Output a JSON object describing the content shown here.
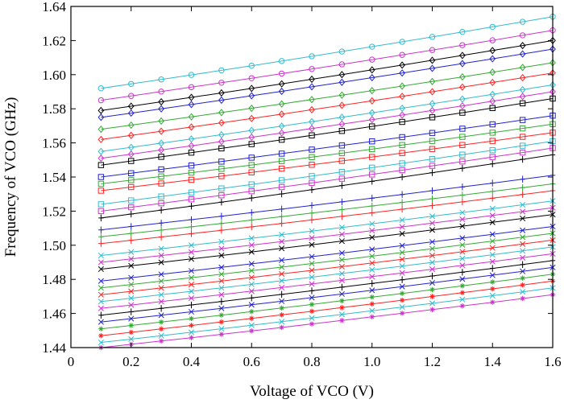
{
  "chart_data": {
    "type": "line",
    "title": "",
    "xlabel": "Voltage of VCO (V)",
    "ylabel": "Frequency of VCO (GHz)",
    "xlim": [
      0,
      1.6
    ],
    "ylim": [
      1.44,
      1.64
    ],
    "xticks": [
      "0",
      "0.2",
      "0.4",
      "0.6",
      "0.8",
      "1.0",
      "1.2",
      "1.4",
      "1.6"
    ],
    "yticks": [
      "1.44",
      "1.46",
      "1.48",
      "1.50",
      "1.52",
      "1.54",
      "1.56",
      "1.58",
      "1.60",
      "1.62",
      "1.64"
    ],
    "grid": false,
    "legend": "none",
    "x": [
      0.1,
      0.2,
      0.3,
      0.4,
      0.5,
      0.6,
      0.7,
      0.8,
      0.9,
      1.0,
      1.1,
      1.2,
      1.3,
      1.4,
      1.5,
      1.6
    ],
    "series": [
      {
        "color": "#cc33cc",
        "marker": "asterisk",
        "start": 1.44,
        "end": 1.471
      },
      {
        "color": "#33bbcc",
        "marker": "x",
        "start": 1.443,
        "end": 1.475
      },
      {
        "color": "#ff2222",
        "marker": "asterisk",
        "start": 1.447,
        "end": 1.479
      },
      {
        "color": "#33aa33",
        "marker": "asterisk",
        "start": 1.451,
        "end": 1.483
      },
      {
        "color": "#2222cc",
        "marker": "x",
        "start": 1.455,
        "end": 1.487
      },
      {
        "color": "#000000",
        "marker": "plus",
        "start": 1.459,
        "end": 1.491
      },
      {
        "color": "#cc33cc",
        "marker": "x",
        "start": 1.463,
        "end": 1.495
      },
      {
        "color": "#33bbcc",
        "marker": "x",
        "start": 1.467,
        "end": 1.499
      },
      {
        "color": "#ff2222",
        "marker": "x",
        "start": 1.471,
        "end": 1.503
      },
      {
        "color": "#33aa33",
        "marker": "x",
        "start": 1.475,
        "end": 1.507
      },
      {
        "color": "#2222cc",
        "marker": "x",
        "start": 1.479,
        "end": 1.511
      },
      {
        "color": "#000000",
        "marker": "x",
        "start": 1.486,
        "end": 1.518
      },
      {
        "color": "#cc33cc",
        "marker": "x",
        "start": 1.49,
        "end": 1.522
      },
      {
        "color": "#33bbcc",
        "marker": "x",
        "start": 1.494,
        "end": 1.526
      },
      {
        "color": "#ff2222",
        "marker": "plus",
        "start": 1.501,
        "end": 1.532
      },
      {
        "color": "#33aa33",
        "marker": "plus",
        "start": 1.505,
        "end": 1.536
      },
      {
        "color": "#2222cc",
        "marker": "plus",
        "start": 1.509,
        "end": 1.541
      },
      {
        "color": "#000000",
        "marker": "plus",
        "start": 1.516,
        "end": 1.553
      },
      {
        "color": "#cc33cc",
        "marker": "square",
        "start": 1.52,
        "end": 1.557
      },
      {
        "color": "#33bbcc",
        "marker": "square",
        "start": 1.524,
        "end": 1.561
      },
      {
        "color": "#ff2222",
        "marker": "square",
        "start": 1.532,
        "end": 1.566
      },
      {
        "color": "#33aa33",
        "marker": "square",
        "start": 1.536,
        "end": 1.571
      },
      {
        "color": "#2222cc",
        "marker": "square",
        "start": 1.54,
        "end": 1.576
      },
      {
        "color": "#000000",
        "marker": "square",
        "start": 1.547,
        "end": 1.586
      },
      {
        "color": "#cc33cc",
        "marker": "diamond",
        "start": 1.551,
        "end": 1.59
      },
      {
        "color": "#33bbcc",
        "marker": "diamond",
        "start": 1.555,
        "end": 1.594
      },
      {
        "color": "#ff2222",
        "marker": "diamond",
        "start": 1.562,
        "end": 1.601
      },
      {
        "color": "#33aa33",
        "marker": "diamond",
        "start": 1.568,
        "end": 1.607
      },
      {
        "color": "#2222cc",
        "marker": "diamond",
        "start": 1.575,
        "end": 1.615
      },
      {
        "color": "#000000",
        "marker": "diamond",
        "start": 1.579,
        "end": 1.62
      },
      {
        "color": "#cc33cc",
        "marker": "circle",
        "start": 1.585,
        "end": 1.626
      },
      {
        "color": "#33bbcc",
        "marker": "circle",
        "start": 1.592,
        "end": 1.634
      }
    ]
  }
}
